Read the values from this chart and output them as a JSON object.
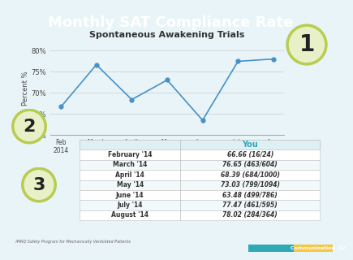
{
  "title": "Monthly SAT Compliance Rate",
  "subtitle": "Spontaneous Awakening Trials",
  "title_bg": "#2fa8b8",
  "background_color": "#e8f4f7",
  "months_x": [
    "Feb\n2014",
    "March\n2014",
    "April\n2014",
    "May\n2014",
    "June\n2014",
    "July\n2014",
    "Aug\n2014"
  ],
  "y_values": [
    66.66,
    76.65,
    68.39,
    73.03,
    63.48,
    77.47,
    78.02
  ],
  "ylim": [
    60,
    82
  ],
  "yticks": [
    60,
    65,
    70,
    75,
    80
  ],
  "ytick_labels": [
    "60%",
    "65%",
    "70%",
    "75%",
    "80%"
  ],
  "ylabel": "Percent %",
  "line_color": "#4a90c4",
  "marker_color": "#4a90c4",
  "grid_color": "#cccccc",
  "table_header": "You",
  "table_header_color": "#2fa8b8",
  "table_rows": [
    [
      "February '14",
      "66.66 (16/24)"
    ],
    [
      "March '14",
      "76.65 (463/604)"
    ],
    [
      "April '14",
      "68.39 (684/1000)"
    ],
    [
      "May '14",
      "73.03 (799/1094)"
    ],
    [
      "June '14",
      "63.48 (499/786)"
    ],
    [
      "July '14",
      "77.47 (461/595)"
    ],
    [
      "August '14",
      "78.02 (284/364)"
    ]
  ],
  "col_split": 0.42,
  "circle1_color": "#e8f0c8",
  "circle2_color": "#e8f0c8",
  "circle3_color": "#e8f0c8",
  "circle_edge_color": "#b8cc50",
  "footer_text": "AHRQ Safety Program for Mechanically Ventilated Patients",
  "footer_right": "Communication  22",
  "bottom_accent1": "#2fa8b8",
  "bottom_accent2": "#f5c842"
}
